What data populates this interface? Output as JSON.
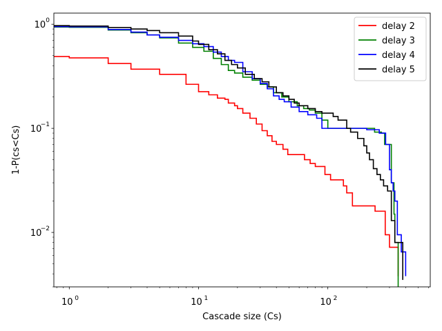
{
  "chart_data": {
    "type": "line",
    "title": "",
    "xlabel": "Cascade size (Cs)",
    "ylabel": "1-P(cs<Cs)",
    "xscale": "log",
    "yscale": "log",
    "xlim": [
      0.76,
      620
    ],
    "ylim": [
      0.003,
      1.28
    ],
    "xticks": [
      {
        "value": 1,
        "base": "10",
        "exp": "0"
      },
      {
        "value": 10,
        "base": "10",
        "exp": "1"
      },
      {
        "value": 100,
        "base": "10",
        "exp": "2"
      }
    ],
    "yticks": [
      {
        "value": 0.01,
        "base": "10",
        "exp": "−2"
      },
      {
        "value": 0.1,
        "base": "10",
        "exp": "−1"
      },
      {
        "value": 1,
        "base": "10",
        "exp": "0"
      }
    ],
    "grid": false,
    "legend_position": "top-right",
    "step": true,
    "series": [
      {
        "name": "delay 2",
        "color": "#ff0000",
        "points": [
          [
            0.76,
            0.49
          ],
          [
            1,
            0.475
          ],
          [
            2,
            0.42
          ],
          [
            3,
            0.37
          ],
          [
            5,
            0.33
          ],
          [
            8,
            0.265
          ],
          [
            10,
            0.225
          ],
          [
            12,
            0.21
          ],
          [
            14,
            0.195
          ],
          [
            16,
            0.19
          ],
          [
            17,
            0.175
          ],
          [
            19,
            0.165
          ],
          [
            20,
            0.155
          ],
          [
            22,
            0.14
          ],
          [
            25,
            0.125
          ],
          [
            28,
            0.11
          ],
          [
            31,
            0.095
          ],
          [
            34,
            0.085
          ],
          [
            37,
            0.075
          ],
          [
            40,
            0.07
          ],
          [
            45,
            0.063
          ],
          [
            49,
            0.056
          ],
          [
            60,
            0.056
          ],
          [
            66,
            0.05
          ],
          [
            73,
            0.046
          ],
          [
            80,
            0.043
          ],
          [
            95,
            0.036
          ],
          [
            105,
            0.032
          ],
          [
            132,
            0.028
          ],
          [
            140,
            0.024
          ],
          [
            155,
            0.018
          ],
          [
            210,
            0.018
          ],
          [
            232,
            0.016
          ],
          [
            278,
            0.0095
          ],
          [
            300,
            0.0072
          ],
          [
            350,
            0.0038
          ]
        ]
      },
      {
        "name": "delay 3",
        "color": "#008000",
        "points": [
          [
            0.76,
            0.94
          ],
          [
            1,
            0.935
          ],
          [
            2,
            0.88
          ],
          [
            3,
            0.83
          ],
          [
            4,
            0.79
          ],
          [
            5,
            0.74
          ],
          [
            7,
            0.66
          ],
          [
            9,
            0.6
          ],
          [
            11,
            0.55
          ],
          [
            13,
            0.47
          ],
          [
            15,
            0.41
          ],
          [
            17,
            0.36
          ],
          [
            19,
            0.34
          ],
          [
            22,
            0.31
          ],
          [
            26,
            0.29
          ],
          [
            30,
            0.265
          ],
          [
            34,
            0.25
          ],
          [
            38,
            0.22
          ],
          [
            44,
            0.2
          ],
          [
            50,
            0.18
          ],
          [
            58,
            0.165
          ],
          [
            65,
            0.155
          ],
          [
            72,
            0.15
          ],
          [
            80,
            0.14
          ],
          [
            90,
            0.12
          ],
          [
            100,
            0.1
          ],
          [
            160,
            0.1
          ],
          [
            230,
            0.092
          ],
          [
            260,
            0.09
          ],
          [
            275,
            0.07
          ],
          [
            310,
            0.03
          ],
          [
            325,
            0.015
          ],
          [
            330,
            0.008
          ],
          [
            350,
            0.003
          ]
        ]
      },
      {
        "name": "delay 4",
        "color": "#0000ff",
        "points": [
          [
            0.76,
            0.95
          ],
          [
            1,
            0.945
          ],
          [
            2,
            0.89
          ],
          [
            3,
            0.84
          ],
          [
            4,
            0.79
          ],
          [
            5,
            0.75
          ],
          [
            7,
            0.7
          ],
          [
            9,
            0.65
          ],
          [
            11,
            0.61
          ],
          [
            13,
            0.54
          ],
          [
            15,
            0.49
          ],
          [
            17,
            0.45
          ],
          [
            19,
            0.43
          ],
          [
            22,
            0.35
          ],
          [
            26,
            0.3
          ],
          [
            30,
            0.27
          ],
          [
            34,
            0.24
          ],
          [
            38,
            0.205
          ],
          [
            42,
            0.19
          ],
          [
            46,
            0.18
          ],
          [
            52,
            0.16
          ],
          [
            60,
            0.145
          ],
          [
            70,
            0.135
          ],
          [
            82,
            0.125
          ],
          [
            90,
            0.1
          ],
          [
            200,
            0.097
          ],
          [
            250,
            0.09
          ],
          [
            280,
            0.07
          ],
          [
            300,
            0.04
          ],
          [
            310,
            0.03
          ],
          [
            320,
            0.025
          ],
          [
            330,
            0.02
          ],
          [
            345,
            0.0095
          ],
          [
            370,
            0.0065
          ],
          [
            400,
            0.0038
          ]
        ]
      },
      {
        "name": "delay 5",
        "color": "#000000",
        "points": [
          [
            0.76,
            0.97
          ],
          [
            1,
            0.96
          ],
          [
            2,
            0.93
          ],
          [
            3,
            0.9
          ],
          [
            4,
            0.87
          ],
          [
            5,
            0.83
          ],
          [
            7,
            0.77
          ],
          [
            9,
            0.69
          ],
          [
            10,
            0.64
          ],
          [
            12,
            0.57
          ],
          [
            14,
            0.52
          ],
          [
            16,
            0.45
          ],
          [
            18,
            0.41
          ],
          [
            20,
            0.38
          ],
          [
            23,
            0.33
          ],
          [
            27,
            0.3
          ],
          [
            31,
            0.28
          ],
          [
            35,
            0.25
          ],
          [
            40,
            0.22
          ],
          [
            45,
            0.205
          ],
          [
            50,
            0.19
          ],
          [
            55,
            0.175
          ],
          [
            60,
            0.165
          ],
          [
            70,
            0.155
          ],
          [
            80,
            0.145
          ],
          [
            90,
            0.14
          ],
          [
            110,
            0.13
          ],
          [
            120,
            0.12
          ],
          [
            140,
            0.1
          ],
          [
            150,
            0.092
          ],
          [
            170,
            0.08
          ],
          [
            190,
            0.068
          ],
          [
            200,
            0.058
          ],
          [
            210,
            0.05
          ],
          [
            225,
            0.041
          ],
          [
            240,
            0.036
          ],
          [
            255,
            0.032
          ],
          [
            270,
            0.028
          ],
          [
            290,
            0.025
          ],
          [
            310,
            0.013
          ],
          [
            330,
            0.008
          ],
          [
            365,
            0.008
          ],
          [
            380,
            0.0035
          ]
        ]
      }
    ]
  }
}
